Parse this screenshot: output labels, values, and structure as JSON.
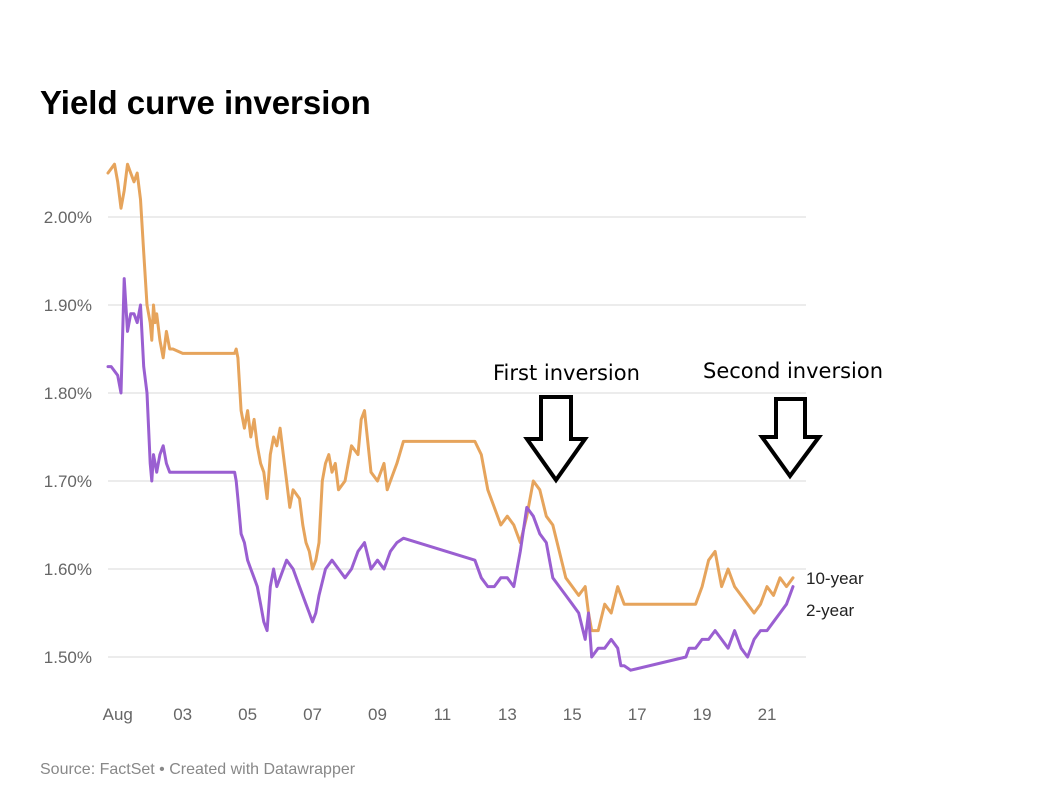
{
  "title": "Yield curve inversion",
  "footer": "Source: FactSet • Created with Datawrapper",
  "annotations": {
    "first": "First inversion",
    "second": "Second inversion"
  },
  "colors": {
    "ten_year": "#e6a45c",
    "two_year": "#9a5fd1",
    "grid": "#d9d9d9"
  },
  "chart_data": {
    "type": "line",
    "title": "Yield curve inversion",
    "xlabel": "",
    "ylabel": "",
    "x_tick_labels": [
      "Aug",
      "03",
      "05",
      "07",
      "09",
      "11",
      "13",
      "15",
      "17",
      "19",
      "21"
    ],
    "y_tick_labels": [
      "2.00%",
      "1.90%",
      "1.80%",
      "1.70%",
      "1.60%",
      "1.50%"
    ],
    "y_ticks": [
      2.0,
      1.9,
      1.8,
      1.7,
      1.6,
      1.5
    ],
    "ylim": [
      1.45,
      2.08
    ],
    "x_unit": "days in August (1 = Aug 1)",
    "xlim": [
      0.7,
      22.2
    ],
    "grid": true,
    "series": [
      {
        "name": "10-year",
        "x": [
          0.7,
          0.9,
          1.0,
          1.1,
          1.2,
          1.3,
          1.4,
          1.5,
          1.6,
          1.7,
          1.8,
          1.9,
          2.0,
          2.05,
          2.1,
          2.15,
          2.2,
          2.3,
          2.4,
          2.5,
          2.6,
          2.7,
          3.0,
          3.5,
          4.0,
          4.6,
          4.65,
          4.7,
          4.8,
          4.9,
          5.0,
          5.1,
          5.2,
          5.3,
          5.4,
          5.5,
          5.6,
          5.7,
          5.8,
          5.9,
          6.0,
          6.1,
          6.2,
          6.3,
          6.4,
          6.6,
          6.7,
          6.8,
          6.9,
          7.0,
          7.1,
          7.2,
          7.3,
          7.4,
          7.5,
          7.6,
          7.7,
          7.8,
          8.0,
          8.2,
          8.4,
          8.5,
          8.6,
          8.8,
          9.0,
          9.2,
          9.3,
          9.4,
          9.6,
          9.8,
          11.0,
          11.4,
          12.0,
          12.2,
          12.4,
          12.6,
          12.8,
          13.0,
          13.2,
          13.4,
          13.6,
          13.8,
          14.0,
          14.2,
          14.4,
          14.6,
          14.8,
          15.0,
          15.2,
          15.4,
          15.5,
          15.6,
          15.8,
          16.0,
          16.2,
          16.4,
          16.5,
          16.6,
          16.8,
          17.5,
          18.5,
          18.6,
          18.8,
          19.0,
          19.2,
          19.4,
          19.6,
          19.8,
          20.0,
          20.2,
          20.4,
          20.6,
          20.8,
          21.0,
          21.2,
          21.4,
          21.6,
          21.8
        ],
        "values": [
          2.05,
          2.06,
          2.04,
          2.01,
          2.03,
          2.06,
          2.05,
          2.04,
          2.05,
          2.02,
          1.96,
          1.9,
          1.88,
          1.86,
          1.9,
          1.88,
          1.89,
          1.86,
          1.84,
          1.87,
          1.85,
          1.85,
          1.845,
          1.845,
          1.845,
          1.845,
          1.85,
          1.84,
          1.78,
          1.76,
          1.78,
          1.75,
          1.77,
          1.74,
          1.72,
          1.71,
          1.68,
          1.73,
          1.75,
          1.74,
          1.76,
          1.73,
          1.7,
          1.67,
          1.69,
          1.68,
          1.65,
          1.63,
          1.62,
          1.6,
          1.61,
          1.63,
          1.7,
          1.72,
          1.73,
          1.71,
          1.72,
          1.69,
          1.7,
          1.74,
          1.73,
          1.77,
          1.78,
          1.71,
          1.7,
          1.72,
          1.69,
          1.7,
          1.72,
          1.745,
          1.745,
          1.745,
          1.745,
          1.73,
          1.69,
          1.67,
          1.65,
          1.66,
          1.65,
          1.63,
          1.66,
          1.7,
          1.69,
          1.66,
          1.65,
          1.62,
          1.59,
          1.58,
          1.57,
          1.58,
          1.55,
          1.53,
          1.53,
          1.56,
          1.55,
          1.58,
          1.57,
          1.56,
          1.56,
          1.56,
          1.56,
          1.56,
          1.56,
          1.58,
          1.61,
          1.62,
          1.58,
          1.6,
          1.58,
          1.57,
          1.56,
          1.55,
          1.56,
          1.58,
          1.57,
          1.59,
          1.58,
          1.59
        ]
      },
      {
        "name": "2-year",
        "x": [
          0.7,
          0.8,
          1.0,
          1.1,
          1.2,
          1.3,
          1.4,
          1.5,
          1.6,
          1.7,
          1.8,
          1.9,
          2.0,
          2.05,
          2.1,
          2.2,
          2.3,
          2.4,
          2.5,
          2.6,
          2.7,
          3.0,
          3.5,
          4.0,
          4.6,
          4.65,
          4.7,
          4.8,
          4.9,
          5.0,
          5.1,
          5.2,
          5.3,
          5.4,
          5.5,
          5.6,
          5.7,
          5.8,
          5.9,
          6.0,
          6.2,
          6.4,
          6.6,
          6.8,
          6.9,
          7.0,
          7.1,
          7.2,
          7.4,
          7.6,
          7.8,
          8.0,
          8.2,
          8.4,
          8.6,
          8.8,
          9.0,
          9.2,
          9.4,
          9.6,
          9.8,
          12.0,
          12.2,
          12.4,
          12.6,
          12.8,
          13.0,
          13.2,
          13.4,
          13.6,
          13.8,
          14.0,
          14.2,
          14.4,
          14.6,
          14.8,
          15.0,
          15.2,
          15.4,
          15.5,
          15.6,
          15.8,
          16.0,
          16.2,
          16.4,
          16.5,
          16.6,
          16.8,
          18.5,
          18.6,
          18.8,
          19.0,
          19.2,
          19.4,
          19.6,
          19.8,
          20.0,
          20.2,
          20.4,
          20.6,
          20.8,
          21.0,
          21.2,
          21.4,
          21.6,
          21.8
        ],
        "values": [
          1.83,
          1.83,
          1.82,
          1.8,
          1.93,
          1.87,
          1.89,
          1.89,
          1.88,
          1.9,
          1.83,
          1.8,
          1.72,
          1.7,
          1.73,
          1.71,
          1.73,
          1.74,
          1.72,
          1.71,
          1.71,
          1.71,
          1.71,
          1.71,
          1.71,
          1.7,
          1.68,
          1.64,
          1.63,
          1.61,
          1.6,
          1.59,
          1.58,
          1.56,
          1.54,
          1.53,
          1.58,
          1.6,
          1.58,
          1.59,
          1.61,
          1.6,
          1.58,
          1.56,
          1.55,
          1.54,
          1.55,
          1.57,
          1.6,
          1.61,
          1.6,
          1.59,
          1.6,
          1.62,
          1.63,
          1.6,
          1.61,
          1.6,
          1.62,
          1.63,
          1.635,
          1.61,
          1.59,
          1.58,
          1.58,
          1.59,
          1.59,
          1.58,
          1.62,
          1.67,
          1.66,
          1.64,
          1.63,
          1.59,
          1.58,
          1.57,
          1.56,
          1.55,
          1.52,
          1.55,
          1.5,
          1.51,
          1.51,
          1.52,
          1.51,
          1.49,
          1.49,
          1.485,
          1.5,
          1.51,
          1.51,
          1.52,
          1.52,
          1.53,
          1.52,
          1.51,
          1.53,
          1.51,
          1.5,
          1.52,
          1.53,
          1.53,
          1.54,
          1.55,
          1.56,
          1.58
        ]
      }
    ]
  }
}
